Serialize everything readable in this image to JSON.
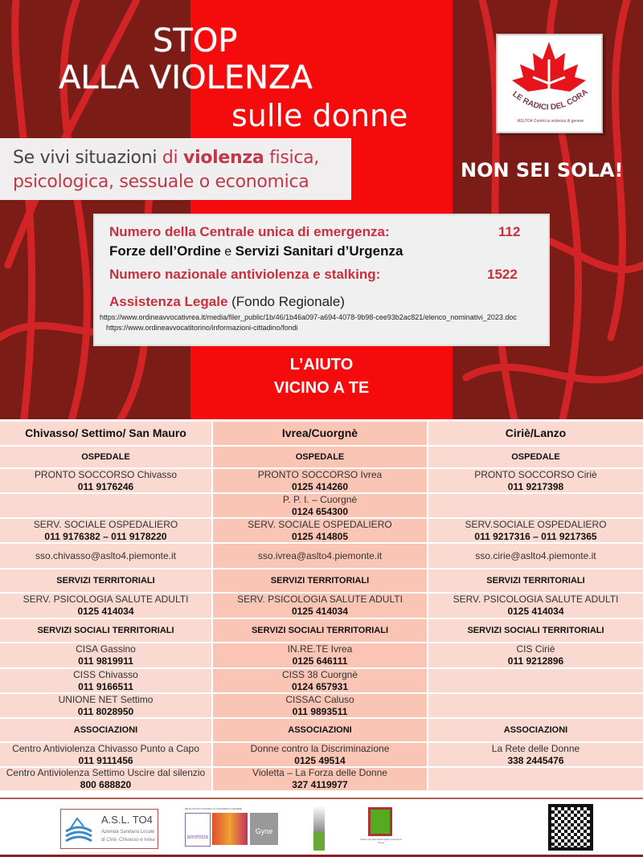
{
  "header": {
    "line1": "STOP",
    "line2": "ALLA VIOLENZA",
    "line3": "sulle donne"
  },
  "subtitle": {
    "p1": "Se vivi situazioni ",
    "p2": "di ",
    "p3": "violenza",
    "p4": " fisica,",
    "p5": "psicologica, sessuale o economica"
  },
  "logo": {
    "text": "LE RADICI DEL CORAGGIO",
    "subtext": "ASLTO4 Contro la violenza di genere"
  },
  "tagline": "NON SEI SOLA!",
  "info": {
    "emergency_label": "Numero della Centrale unica di emergenza:",
    "emergency_number": "112",
    "forces_a": "Forze dell’Ordine",
    "forces_e": " e ",
    "forces_b": "Servizi Sanitari d’Urgenza",
    "national_label": "Numero nazionale antiviolenza e stalking:",
    "national_number": "1522",
    "legal_label": "Assistenza Legale",
    "legal_note": " (Fondo Regionale)",
    "url1": "https://www.ordineavvocativrea.it/media/filer_public/1b/46/1b46a097-a694-4078-9b98-cee93b2ac821/elenco_nominativi_2023.doc",
    "url2": "https://www.ordineavvocatitorino/informazioni-cittadino/fondi"
  },
  "help": {
    "line1": "L’AIUTO",
    "line2": "VICINO A TE"
  },
  "table": {
    "columns": [
      "Chivasso/ Settimo/ San Mauro",
      "Ivrea/Cuorgnè",
      "Ciriè/Lanzo"
    ],
    "rows": [
      {
        "type": "sec",
        "h": 28,
        "cells": [
          {
            "name": "OSPEDALE"
          },
          {
            "name": "OSPEDALE"
          },
          {
            "name": "OSPEDALE"
          }
        ]
      },
      {
        "h": 31,
        "cells": [
          {
            "name": "PRONTO SOCCORSO Chivasso",
            "phone": "011 9176246"
          },
          {
            "name": "PRONTO SOCCORSO Ivrea",
            "phone": "0125 414260"
          },
          {
            "name": "PRONTO SOCCORSO Ciriè",
            "phone": "011 9217398"
          }
        ]
      },
      {
        "h": 31,
        "cells": [
          {},
          {
            "name": "P. P. I. – Cuorgnè",
            "phone": "0124 654300"
          },
          {}
        ]
      },
      {
        "h": 31,
        "cells": [
          {
            "name": "SERV. SOCIALE OSPEDALIERO",
            "phone": "011 9176382 – 011 9178220"
          },
          {
            "name": "SERV. SOCIALE OSPEDALIERO",
            "phone": "0125 414805"
          },
          {
            "name": "SERV.SOCIALE OSPEDALIERO",
            "phone": "011 9217316 – 011 9217365"
          }
        ]
      },
      {
        "h": 32,
        "cells": [
          {
            "name": "sso.chivasso@aslto4.piemonte.it"
          },
          {
            "name": "sso.ivrea@aslto4.piemonte.it"
          },
          {
            "name": "sso.cirie@aslto4.piemonte.it"
          }
        ]
      },
      {
        "type": "sec",
        "h": 30,
        "cells": [
          {
            "name": "SERVIZI TERRITORIALI"
          },
          {
            "name": "SERVIZI TERRITORIALI"
          },
          {
            "name": "SERVIZI TERRITORIALI"
          }
        ]
      },
      {
        "h": 32,
        "cells": [
          {
            "name": "SERV. PSICOLOGIA SALUTE ADULTI",
            "phone": "0125 414034"
          },
          {
            "name": "SERV. PSICOLOGIA SALUTE ADULTI",
            "phone": "0125 414034"
          },
          {
            "name": "SERV. PSICOLOGIA SALUTE ADULTI",
            "phone": "0125 414034"
          }
        ]
      },
      {
        "type": "sec",
        "h": 30,
        "cells": [
          {
            "name": "SERVIZI SOCIALI TERRITORIALI"
          },
          {
            "name": "SERVIZI SOCIALI TERRITORIALI"
          },
          {
            "name": "SERVIZI SOCIALI TERRITORIALI"
          }
        ]
      },
      {
        "h": 32,
        "cells": [
          {
            "name": "CISA Gassino",
            "phone": "011 9819911"
          },
          {
            "name": "IN.RE.TE Ivrea",
            "phone": "0125 646111"
          },
          {
            "name": "CIS Ciriè",
            "phone": "011 9212896"
          }
        ]
      },
      {
        "h": 31,
        "cells": [
          {
            "name": "CISS Chivasso",
            "phone": "011 9166511"
          },
          {
            "name": "CISS 38 Cuorgnè",
            "phone": "0124 657931"
          },
          {}
        ]
      },
      {
        "h": 31,
        "cells": [
          {
            "name": "UNIONE NET Settimo",
            "phone": "011 8028950"
          },
          {
            "name": "CISSAC Caluso",
            "phone": "011 9893511"
          },
          {}
        ]
      },
      {
        "type": "sec",
        "h": 30,
        "cells": [
          {
            "name": "ASSOCIAZIONI"
          },
          {
            "name": "ASSOCIAZIONI"
          },
          {
            "name": "ASSOCIAZIONI"
          }
        ]
      },
      {
        "h": 31,
        "cells": [
          {
            "name": "Centro Antiviolenza Chivasso Punto a Capo",
            "phone": "011 9111456"
          },
          {
            "name": "Donne contro la Discriminazione",
            "phone": "0125 49514"
          },
          {
            "name": "La Rete delle Donne",
            "phone": "338 2445476"
          }
        ]
      },
      {
        "h": 30,
        "cells": [
          {
            "name": "Centro Antiviolenza Settimo Uscire dal silenzio",
            "phone": "800 688820"
          },
          {
            "name": "Violetta – La Forza delle Donne",
            "phone": "327 4119977"
          },
          {}
        ]
      }
    ]
  },
  "footer": {
    "asl_title": "A.S.L. TO4",
    "asl_sub1": "Azienda Sanitaria Locale",
    "asl_sub2": "di Ciriè, Chivasso e Ivrea",
    "ametista": "ametista",
    "gyne": "Gyne",
    "network": "RETE ASLTO4 CONTRO LA VIOLENZA DI GENERE",
    "farmacisti": "Ordine dei Farmacisti della provincia di Torino"
  },
  "colors": {
    "dark_red": "#7b1c16",
    "bright_red": "#f50b0b",
    "text_red": "#c8303e",
    "table_light": "#f9d9d0",
    "table_mid": "#fbc5b6"
  }
}
